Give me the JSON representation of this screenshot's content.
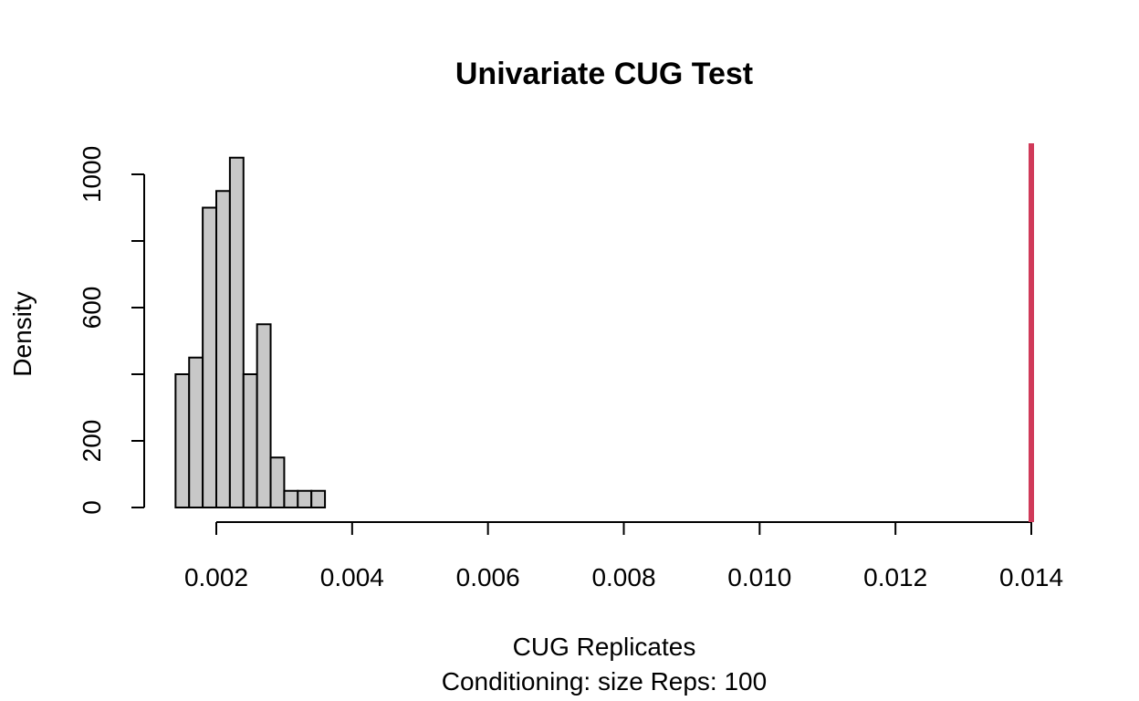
{
  "chart_data": {
    "type": "bar",
    "title": "Univariate CUG Test",
    "xlabel": "CUG Replicates",
    "subtitle": "Conditioning: size Reps: 100",
    "ylabel": "Density",
    "xlim": [
      0.0011,
      0.014
    ],
    "ylim": [
      0,
      1050
    ],
    "x_ticks": [
      0.002,
      0.004,
      0.006,
      0.008,
      0.01,
      0.012,
      0.014
    ],
    "x_tick_labels": [
      "0.002",
      "0.004",
      "0.006",
      "0.008",
      "0.010",
      "0.012",
      "0.014"
    ],
    "y_ticks": [
      0,
      200,
      400,
      600,
      800,
      1000
    ],
    "y_tick_labels": [
      "0",
      "200",
      "",
      "600",
      "",
      "1000"
    ],
    "bin_width": 0.0002,
    "bins": [
      {
        "start": 0.0014,
        "density": 400
      },
      {
        "start": 0.0016,
        "density": 450
      },
      {
        "start": 0.0018,
        "density": 900
      },
      {
        "start": 0.002,
        "density": 950
      },
      {
        "start": 0.0022,
        "density": 1050
      },
      {
        "start": 0.0024,
        "density": 400
      },
      {
        "start": 0.0026,
        "density": 550
      },
      {
        "start": 0.0028,
        "density": 150
      },
      {
        "start": 0.003,
        "density": 50
      },
      {
        "start": 0.0032,
        "density": 50
      },
      {
        "start": 0.0034,
        "density": 50
      }
    ],
    "observed_value": 0.014,
    "observed_color": "#d03a59",
    "bar_color": "#c8c8c8"
  }
}
